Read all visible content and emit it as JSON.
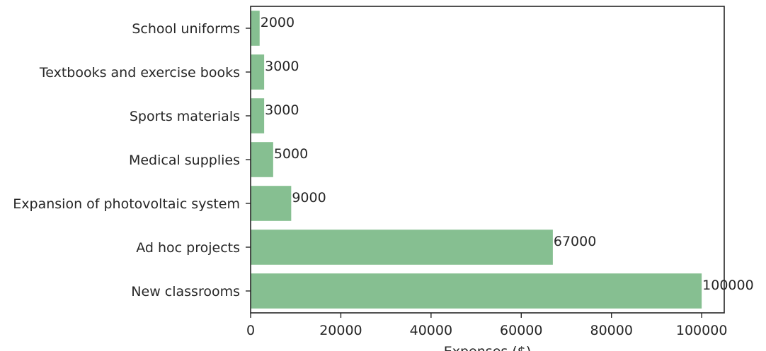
{
  "chart_data": {
    "type": "bar",
    "orientation": "horizontal",
    "categories": [
      "New classrooms",
      "Ad hoc projects",
      "Expansion of photovoltaic system",
      "Medical supplies",
      "Sports materials",
      "Textbooks and exercise books",
      "School uniforms"
    ],
    "values": [
      100000,
      67000,
      9000,
      5000,
      3000,
      3000,
      2000
    ],
    "data_labels": [
      "100000",
      "67000",
      "9000",
      "5000",
      "3000",
      "3000",
      "2000"
    ],
    "xlabel": "Expenses ($)",
    "ylabel": "",
    "title": "",
    "xlim": [
      0,
      105000
    ],
    "xticks": [
      0,
      20000,
      40000,
      60000,
      80000,
      100000
    ],
    "xtick_labels": [
      "0",
      "20000",
      "40000",
      "60000",
      "80000",
      "100000"
    ],
    "grid": false,
    "bar_color": "#86bf91"
  }
}
